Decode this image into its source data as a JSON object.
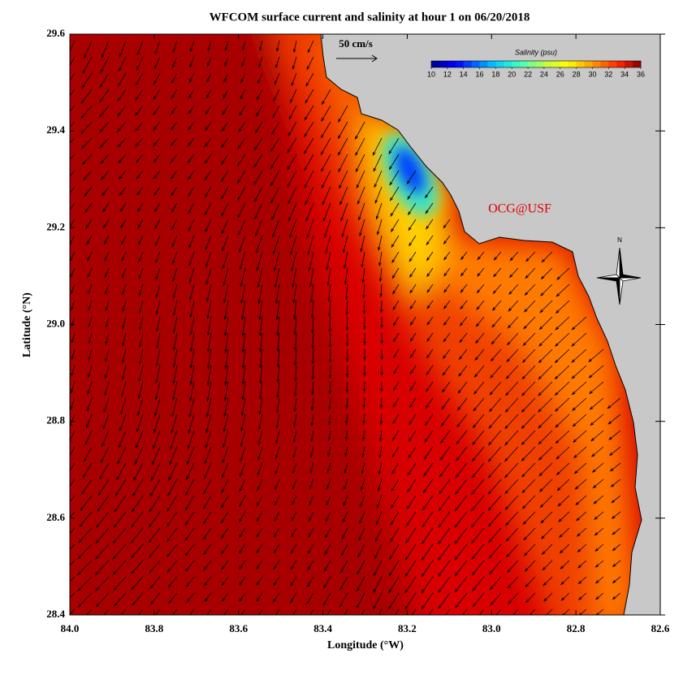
{
  "chart_data": {
    "type": "map",
    "title": "WFCOM surface current and salinity at hour 1 on 06/20/2018",
    "x_label": "Longitude (°W)",
    "y_label": "Latitude (°N)",
    "xlim": [
      84.0,
      82.6
    ],
    "ylim": [
      28.4,
      29.6
    ],
    "xticks": [
      {
        "value": 84.0,
        "label": "84.0"
      },
      83.8,
      83.6,
      83.4,
      83.2,
      {
        "value": 83.0,
        "label": "83.0"
      },
      82.8,
      82.6
    ],
    "yticks": [
      28.4,
      28.6,
      28.8,
      {
        "value": 29.0,
        "label": "29.0"
      },
      29.2,
      29.4,
      29.6
    ],
    "scale_label": "50 cm/s",
    "watermark": "OCG@USF",
    "north_label": "N",
    "colorbar": {
      "title": "Salinity (psu)",
      "ticks": [
        10,
        12,
        14,
        16,
        18,
        20,
        22,
        24,
        26,
        28,
        30,
        32,
        34,
        36
      ]
    }
  }
}
